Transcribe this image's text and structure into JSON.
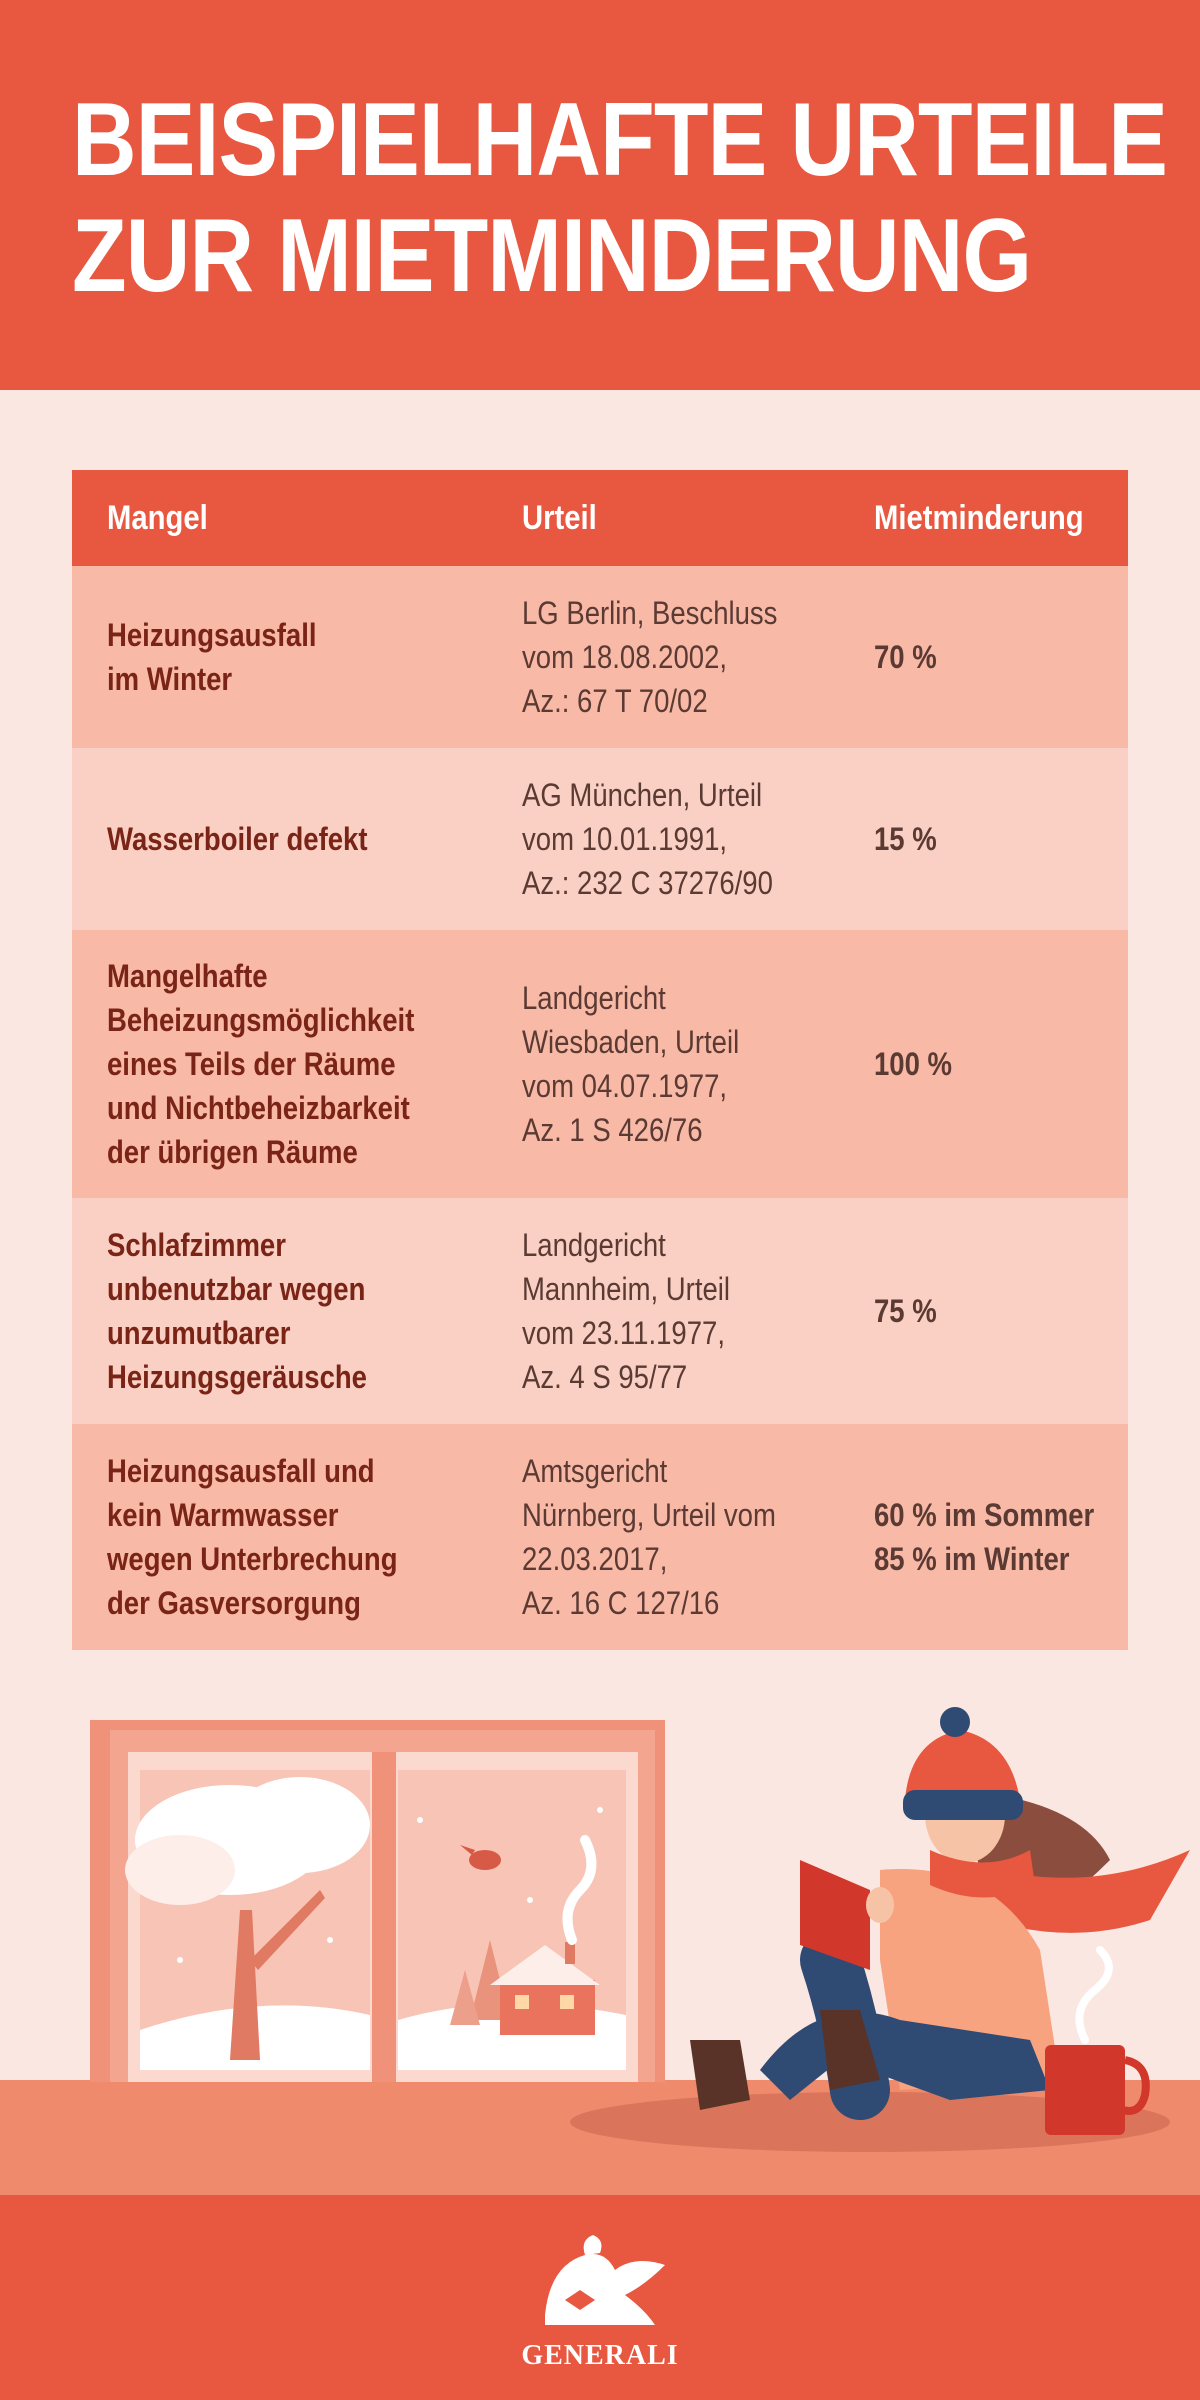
{
  "title": {
    "line1": "BEISPIELHAFTE URTEILE",
    "line2": "ZUR MIETMINDERUNG"
  },
  "table": {
    "headers": [
      "Mangel",
      "Urteil",
      "Mietminderung"
    ],
    "rows": [
      {
        "mangel": [
          "Heizungsausfall",
          "im Winter"
        ],
        "urteil": [
          "LG Berlin, Beschluss",
          "vom 18.08.2002,",
          "Az.: 67 T 70/02"
        ],
        "minderung": [
          "70 %"
        ]
      },
      {
        "mangel": [
          "Wasserboiler defekt"
        ],
        "urteil": [
          "AG München, Urteil",
          "vom 10.01.1991,",
          "Az.: 232 C 37276/90"
        ],
        "minderung": [
          "15 %"
        ]
      },
      {
        "mangel": [
          "Mangelhafte",
          "Beheizungsmöglichkeit",
          "eines Teils der Räume",
          "und Nichtbeheizbarkeit",
          "der übrigen Räume"
        ],
        "urteil": [
          "Landgericht",
          "Wiesbaden, Urteil",
          "vom 04.07.1977,",
          "Az. 1 S 426/76"
        ],
        "minderung": [
          "100 %"
        ]
      },
      {
        "mangel": [
          "Schlafzimmer",
          "unbenutzbar wegen",
          "unzumutbarer",
          "Heizungsgeräusche"
        ],
        "urteil": [
          "Landgericht",
          "Mannheim, Urteil",
          "vom 23.11.1977,",
          "Az. 4 S 95/77"
        ],
        "minderung": [
          "75 %"
        ]
      },
      {
        "mangel": [
          "Heizungsausfall und",
          "kein Warmwasser",
          "wegen Unterbrechung",
          "der Gasversorgung"
        ],
        "urteil": [
          "Amtsgericht",
          "Nürnberg, Urteil vom",
          "22.03.2017,",
          "Az. 16 C 127/16"
        ],
        "minderung": [
          "60 % im Sommer",
          "85 % im Winter"
        ]
      }
    ]
  },
  "footer": {
    "brand": "GENERALI",
    "logo_icon": "generali-lion-icon"
  },
  "colors": {
    "accent": "#e8573f",
    "background": "#fbe7e1",
    "row_dark": "#f8b9a7",
    "row_light": "#f9d0c3",
    "mangel_text": "#7a2417"
  }
}
